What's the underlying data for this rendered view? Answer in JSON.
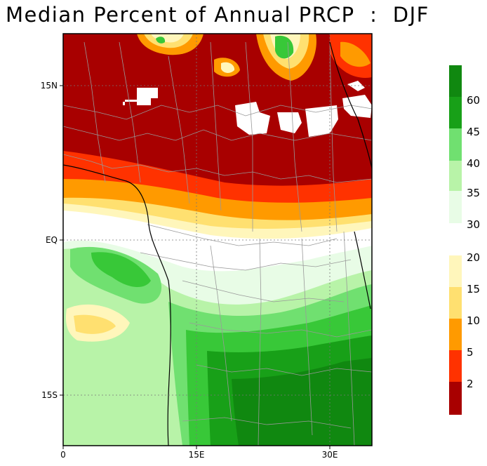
{
  "title": "Median Percent of Annual PRCP  :  DJF",
  "map": {
    "latitude_ticks": [
      "15N",
      "EQ",
      "15S"
    ],
    "longitude_ticks": [
      "0",
      "15E",
      "30E"
    ],
    "region": "Africa (Sahel to southern Africa)",
    "season": "DJF"
  },
  "legend": {
    "colors": [
      "#a80000",
      "#ff3200",
      "#ff9a00",
      "#ffe070",
      "#fff6bb",
      "#e8fce6",
      "#b8f3a8",
      "#70e070",
      "#38c838",
      "#18a018",
      "#108810"
    ],
    "labels": [
      "2",
      "5",
      "10",
      "15",
      "20",
      "30",
      "35",
      "40",
      "45",
      "60"
    ],
    "groups": {
      "dry": [
        "2",
        "5",
        "10",
        "15",
        "20"
      ],
      "wet": [
        "30",
        "35",
        "40",
        "45",
        "60"
      ]
    }
  }
}
